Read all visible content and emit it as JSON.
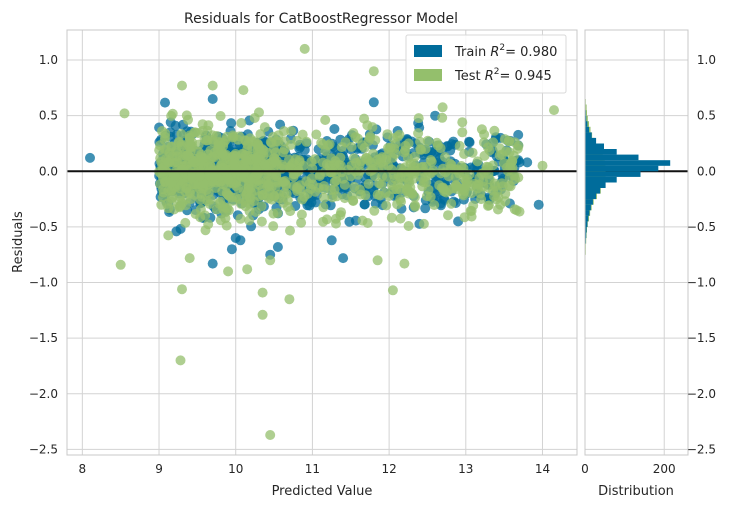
{
  "colors": {
    "train": "#006c9b",
    "test": "#94bf6c",
    "grid": "#d3d3d3",
    "spine": "#c8c8c8",
    "zero_line": "#111111"
  },
  "chart_data": [
    {
      "type": "scatter",
      "title": "Residuals for CatBoostRegressor Model",
      "xlabel": "Predicted Value",
      "ylabel": "Residuals",
      "xlim": [
        7.8,
        14.45
      ],
      "ylim": [
        -2.55,
        1.27
      ],
      "xticks": [
        8,
        9,
        10,
        11,
        12,
        13,
        14
      ],
      "yticks": [
        1.0,
        0.5,
        0.0,
        -0.5,
        -1.0,
        -1.5,
        -2.0,
        -2.5
      ],
      "ytick_labels": [
        "1.0",
        "0.5",
        "0.0",
        "−0.5",
        "−1.0",
        "−1.5",
        "−2.0",
        "−2.5"
      ],
      "grid": true,
      "legend_position": "top-right",
      "reference_line_y": 0,
      "series": [
        {
          "name": "Train",
          "r2_label": "= 0.980",
          "color_key": "train",
          "points_note_excluded": true,
          "outliers": [
            [
              8.1,
              0.12
            ],
            [
              9.7,
              0.65
            ],
            [
              11.8,
              0.62
            ],
            [
              12.6,
              0.5
            ],
            [
              13.5,
              0.1
            ],
            [
              13.7,
              0.08
            ],
            [
              13.95,
              -0.3
            ],
            [
              13.8,
              0.08
            ],
            [
              12.9,
              -0.45
            ],
            [
              9.7,
              -0.83
            ],
            [
              9.95,
              -0.7
            ],
            [
              10.45,
              -0.75
            ],
            [
              10.55,
              -0.68
            ],
            [
              11.4,
              -0.78
            ],
            [
              10.0,
              -0.6
            ],
            [
              13.3,
              -0.25
            ],
            [
              13.55,
              0.05
            ]
          ]
        },
        {
          "name": "Test",
          "r2_label": "= 0.945",
          "color_key": "test",
          "outliers": [
            [
              8.5,
              -0.84
            ],
            [
              8.55,
              0.52
            ],
            [
              9.3,
              0.77
            ],
            [
              9.7,
              0.77
            ],
            [
              10.1,
              0.73
            ],
            [
              10.9,
              1.1
            ],
            [
              11.8,
              0.9
            ],
            [
              14.15,
              0.55
            ],
            [
              9.3,
              -1.06
            ],
            [
              9.4,
              -0.78
            ],
            [
              9.9,
              -0.9
            ],
            [
              10.15,
              -0.88
            ],
            [
              10.35,
              -1.09
            ],
            [
              10.45,
              -0.8
            ],
            [
              10.7,
              -1.15
            ],
            [
              10.35,
              -1.29
            ],
            [
              9.28,
              -1.7
            ],
            [
              10.45,
              -2.37
            ],
            [
              12.05,
              -1.07
            ],
            [
              12.2,
              -0.83
            ],
            [
              11.85,
              -0.8
            ],
            [
              13.2,
              -0.25
            ],
            [
              13.45,
              -0.3
            ],
            [
              14.0,
              0.05
            ]
          ]
        }
      ]
    },
    {
      "type": "bar",
      "orientation": "horizontal",
      "xlabel": "Distribution",
      "xticks": [
        0,
        200
      ],
      "xlim": [
        0,
        260
      ],
      "ylim": [
        -2.55,
        1.27
      ],
      "ytick_labels": [
        "1.0",
        "0.5",
        "0.0",
        "−0.5",
        "−1.0",
        "−1.5",
        "−2.0",
        "−2.5"
      ],
      "bin_width": 0.05,
      "series": [
        {
          "name": "Train",
          "color_key": "train",
          "bins": [
            [
              -0.85,
              0
            ],
            [
              -0.8,
              0
            ],
            [
              -0.75,
              1
            ],
            [
              -0.7,
              1
            ],
            [
              -0.65,
              2
            ],
            [
              -0.6,
              3
            ],
            [
              -0.55,
              4
            ],
            [
              -0.5,
              6
            ],
            [
              -0.45,
              8
            ],
            [
              -0.4,
              11
            ],
            [
              -0.35,
              15
            ],
            [
              -0.3,
              20
            ],
            [
              -0.25,
              28
            ],
            [
              -0.2,
              38
            ],
            [
              -0.15,
              52
            ],
            [
              -0.1,
              80
            ],
            [
              -0.05,
              140
            ],
            [
              0.0,
              185
            ],
            [
              0.05,
              215
            ],
            [
              0.1,
              135
            ],
            [
              0.15,
              80
            ],
            [
              0.2,
              48
            ],
            [
              0.25,
              28
            ],
            [
              0.3,
              17
            ],
            [
              0.35,
              10
            ],
            [
              0.4,
              6
            ],
            [
              0.45,
              3
            ],
            [
              0.5,
              2
            ],
            [
              0.55,
              1
            ],
            [
              0.6,
              1
            ]
          ]
        },
        {
          "name": "Test",
          "color_key": "test",
          "bins": [
            [
              -0.85,
              1
            ],
            [
              -0.8,
              1
            ],
            [
              -0.75,
              2
            ],
            [
              -0.7,
              2
            ],
            [
              -0.65,
              3
            ],
            [
              -0.6,
              4
            ],
            [
              -0.55,
              5
            ],
            [
              -0.5,
              7
            ],
            [
              -0.45,
              10
            ],
            [
              -0.4,
              13
            ],
            [
              -0.35,
              17
            ],
            [
              -0.3,
              22
            ],
            [
              -0.25,
              30
            ],
            [
              -0.2,
              40
            ],
            [
              -0.15,
              48
            ],
            [
              -0.1,
              50
            ],
            [
              -0.05,
              52
            ],
            [
              0.0,
              52
            ],
            [
              0.05,
              50
            ],
            [
              0.1,
              45
            ],
            [
              0.15,
              38
            ],
            [
              0.2,
              30
            ],
            [
              0.25,
              24
            ],
            [
              0.3,
              18
            ],
            [
              0.35,
              14
            ],
            [
              0.4,
              10
            ],
            [
              0.45,
              7
            ],
            [
              0.5,
              5
            ],
            [
              0.55,
              4
            ],
            [
              0.6,
              2
            ]
          ]
        }
      ]
    }
  ]
}
